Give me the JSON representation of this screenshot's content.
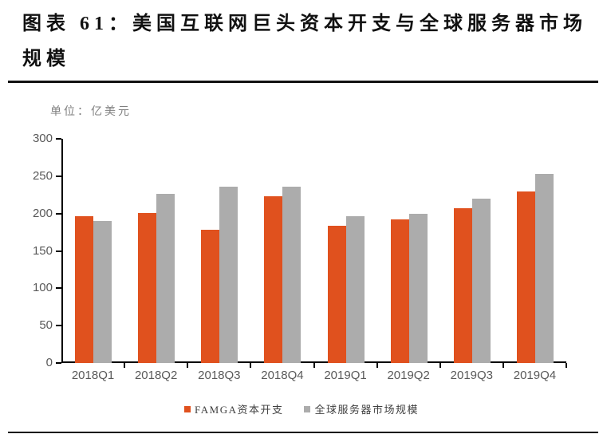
{
  "header": {
    "title_line1": "图表 61：美国互联网巨头资本开支与全球服务器市场",
    "title_line2": "规模"
  },
  "chart_data": {
    "type": "bar",
    "title": "图表 61：美国互联网巨头资本开支与全球服务器市场规模",
    "unit_label": "单位：亿美元",
    "categories": [
      "2018Q1",
      "2018Q2",
      "2018Q3",
      "2018Q4",
      "2019Q1",
      "2019Q2",
      "2019Q3",
      "2019Q4"
    ],
    "series": [
      {
        "name": "FAMGA资本开支",
        "color": "#E0511E",
        "values": [
          197,
          201,
          178,
          223,
          184,
          192,
          207,
          230
        ]
      },
      {
        "name": "全球服务器市场规模",
        "color": "#ACACAC",
        "values": [
          190,
          226,
          236,
          236,
          197,
          200,
          220,
          253
        ]
      }
    ],
    "ylim": [
      0,
      300
    ],
    "yticks": [
      0,
      50,
      100,
      150,
      200,
      250,
      300
    ],
    "xlabel": "",
    "ylabel": "",
    "grid": false,
    "legend_position": "bottom",
    "axis_color": "#000000",
    "tick_label_color": "#595959"
  }
}
